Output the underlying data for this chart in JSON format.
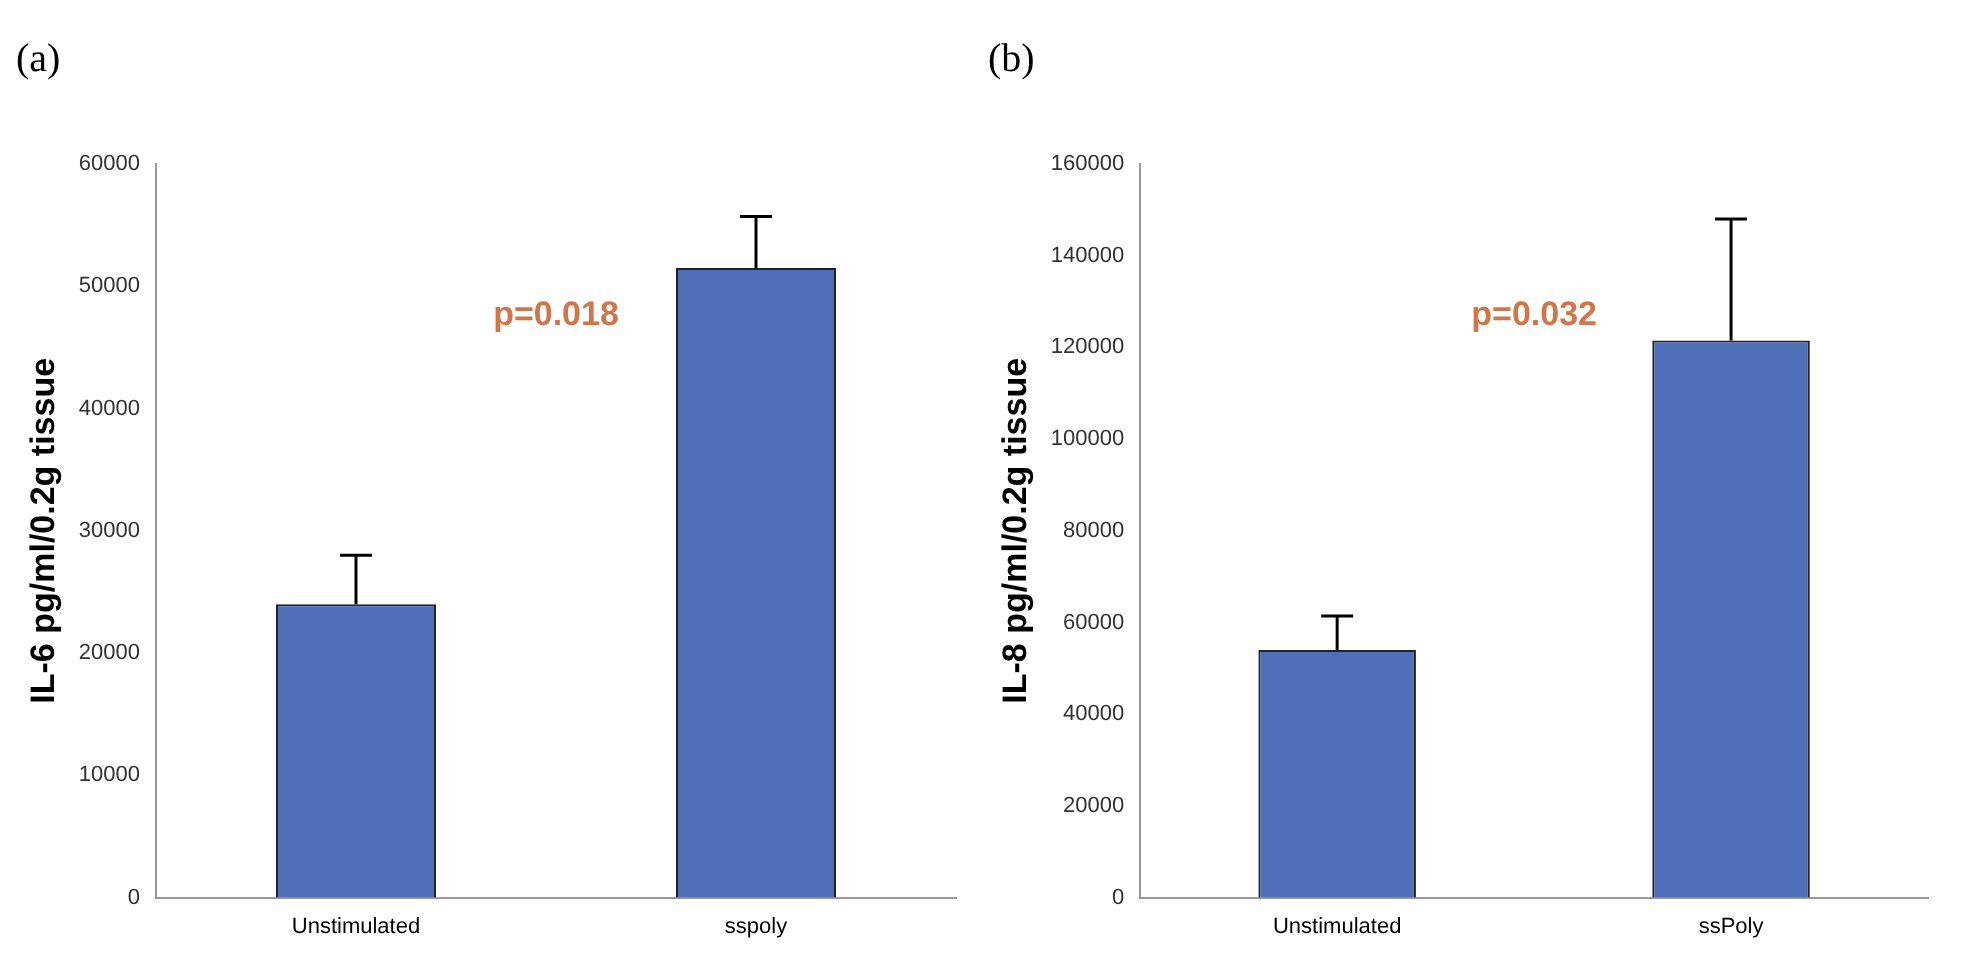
{
  "chart_data": [
    {
      "type": "bar",
      "title": "(a)",
      "ylabel": "IL-6 pg/ml/0.2g tissue",
      "categories": [
        "Unstimulated",
        "sspoly"
      ],
      "values": [
        24000,
        51500
      ],
      "errors": [
        [
          24000,
          28000
        ],
        [
          51500,
          55700
        ]
      ],
      "color": "#4f6fb8",
      "ylim": [
        0,
        60000
      ],
      "yticks": [
        0,
        10000,
        20000,
        30000,
        40000,
        50000,
        60000
      ],
      "annotations": [
        "p=0.018"
      ]
    },
    {
      "type": "bar",
      "title": "(b)",
      "ylabel": "IL-8 pg/ml/0.2g tissue",
      "categories": [
        "Unstimulated",
        "ssPoly"
      ],
      "values": [
        54000,
        121500
      ],
      "errors": [
        [
          54000,
          61400
        ],
        [
          121500,
          148000
        ]
      ],
      "color": "#4f6fb8",
      "ylim": [
        0,
        160000
      ],
      "yticks": [
        0,
        20000,
        40000,
        60000,
        80000,
        100000,
        120000,
        140000,
        160000
      ],
      "annotations": [
        "p=0.032"
      ]
    }
  ]
}
